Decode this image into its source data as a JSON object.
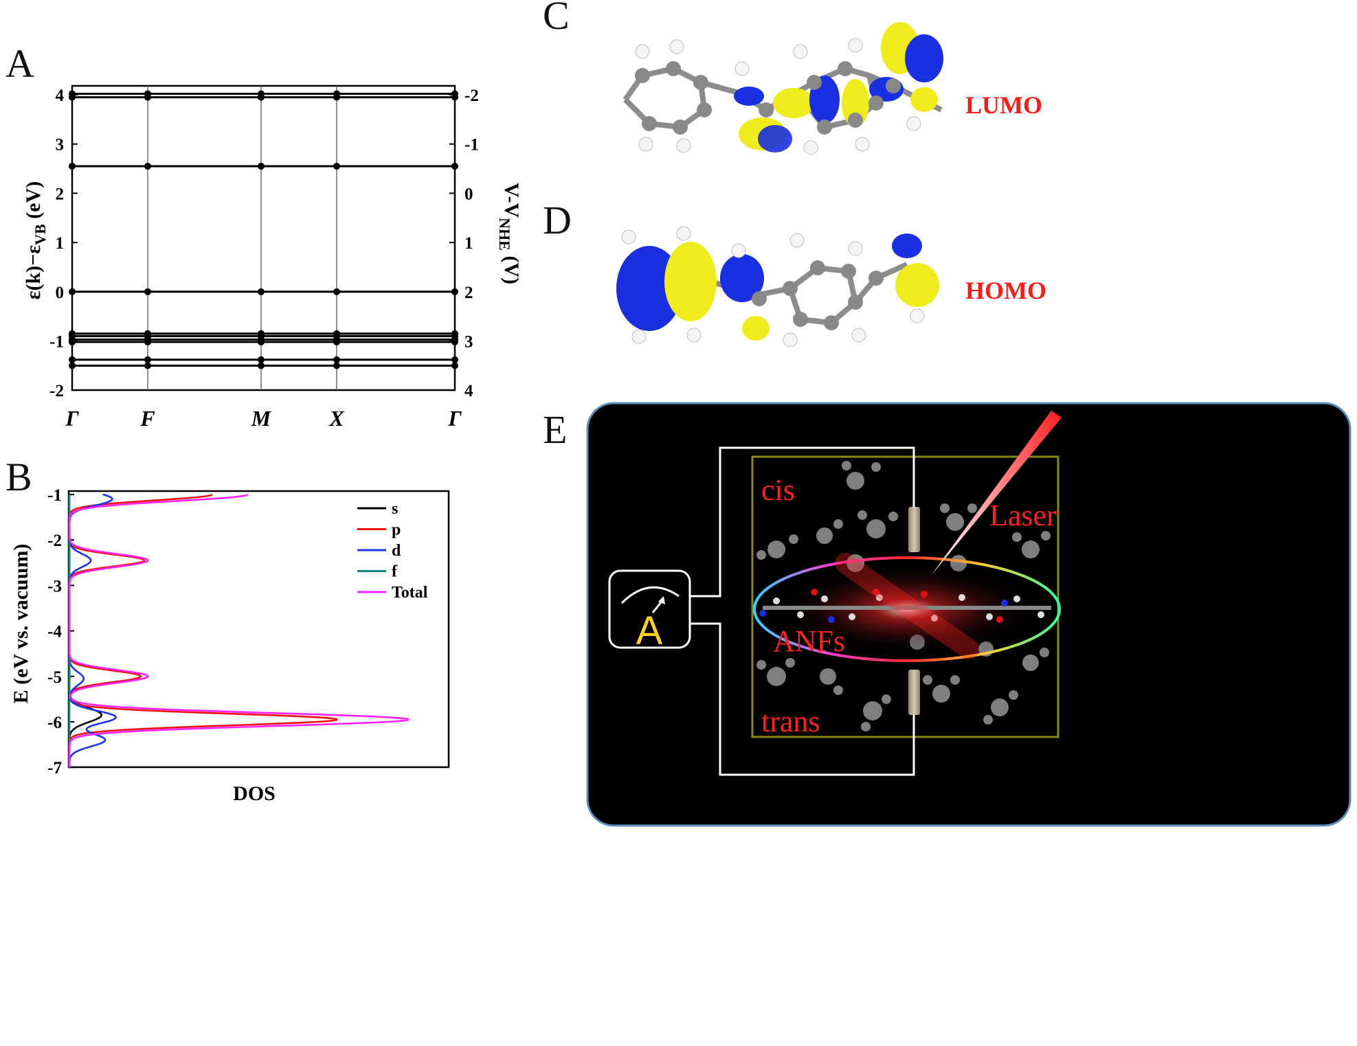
{
  "panels": {
    "A": {
      "letter": "A",
      "left_axis_label": "ε(k)−ε",
      "left_axis_sub": "VB",
      "left_axis_unit": " (eV)",
      "right_axis_label": "V-V",
      "right_axis_sub": "NHE",
      "right_axis_unit": " (V)",
      "left_ticks": [
        "4",
        "3",
        "2",
        "1",
        "0",
        "-1",
        "-2"
      ],
      "right_ticks": [
        "-2",
        "-1",
        "0",
        "1",
        "2",
        "3",
        "4"
      ],
      "kpoints": [
        "Γ",
        "F",
        "M",
        "X",
        "Γ"
      ],
      "chart_data": {
        "type": "line",
        "title": "",
        "ylim": [
          -2,
          4.2
        ],
        "right_ylim_note": "V-V_NHE = 2 - E",
        "kpoints": [
          "Γ",
          "F",
          "M",
          "X",
          "Γ"
        ],
        "bands_eV": [
          4.02,
          3.95,
          2.55,
          0.0,
          -0.85,
          -0.9,
          -0.97,
          -1.02,
          -1.38,
          -1.5
        ]
      }
    },
    "B": {
      "letter": "B",
      "ylabel": "E (eV vs. vacuum)",
      "xlabel": "DOS",
      "yticks": [
        "-1",
        "-2",
        "-3",
        "-4",
        "-5",
        "-6",
        "-7"
      ],
      "legend": [
        {
          "name": "s",
          "color": "#000000"
        },
        {
          "name": "p",
          "color": "#ee1111"
        },
        {
          "name": "d",
          "color": "#1a33ee"
        },
        {
          "name": "f",
          "color": "#0e8a80"
        },
        {
          "name": "Total",
          "color": "#ff22ff"
        }
      ],
      "chart_data": {
        "type": "line",
        "xlabel": "DOS",
        "ylabel": "E (eV vs. vacuum)",
        "ylim": [
          -7,
          -1
        ],
        "series": [
          {
            "name": "s",
            "peaks": [
              {
                "E": -5.85,
                "height": 0.09
              }
            ]
          },
          {
            "name": "p",
            "peaks": [
              {
                "E": -1.0,
                "height": 0.4
              },
              {
                "E": -2.45,
                "height": 0.21
              },
              {
                "E": -5.0,
                "height": 0.2
              },
              {
                "E": -5.95,
                "height": 0.75
              }
            ]
          },
          {
            "name": "d",
            "peaks": [
              {
                "E": -1.1,
                "height": 0.12
              },
              {
                "E": -2.45,
                "height": 0.06
              },
              {
                "E": -5.05,
                "height": 0.04
              },
              {
                "E": -5.9,
                "height": 0.13
              },
              {
                "E": -6.4,
                "height": 0.1
              }
            ]
          },
          {
            "name": "f",
            "peaks": []
          },
          {
            "name": "Total",
            "peaks": [
              {
                "E": -1.0,
                "height": 0.5
              },
              {
                "E": -2.45,
                "height": 0.22
              },
              {
                "E": -5.0,
                "height": 0.22
              },
              {
                "E": -5.95,
                "height": 0.95
              }
            ]
          }
        ]
      }
    },
    "C": {
      "letter": "C",
      "orbital": "LUMO"
    },
    "D": {
      "letter": "D",
      "orbital": "HOMO"
    },
    "E": {
      "letter": "E",
      "cis": "cis",
      "trans": "trans",
      "laser": "Laser",
      "anfs": "ANFs",
      "ammeter": "A"
    }
  }
}
